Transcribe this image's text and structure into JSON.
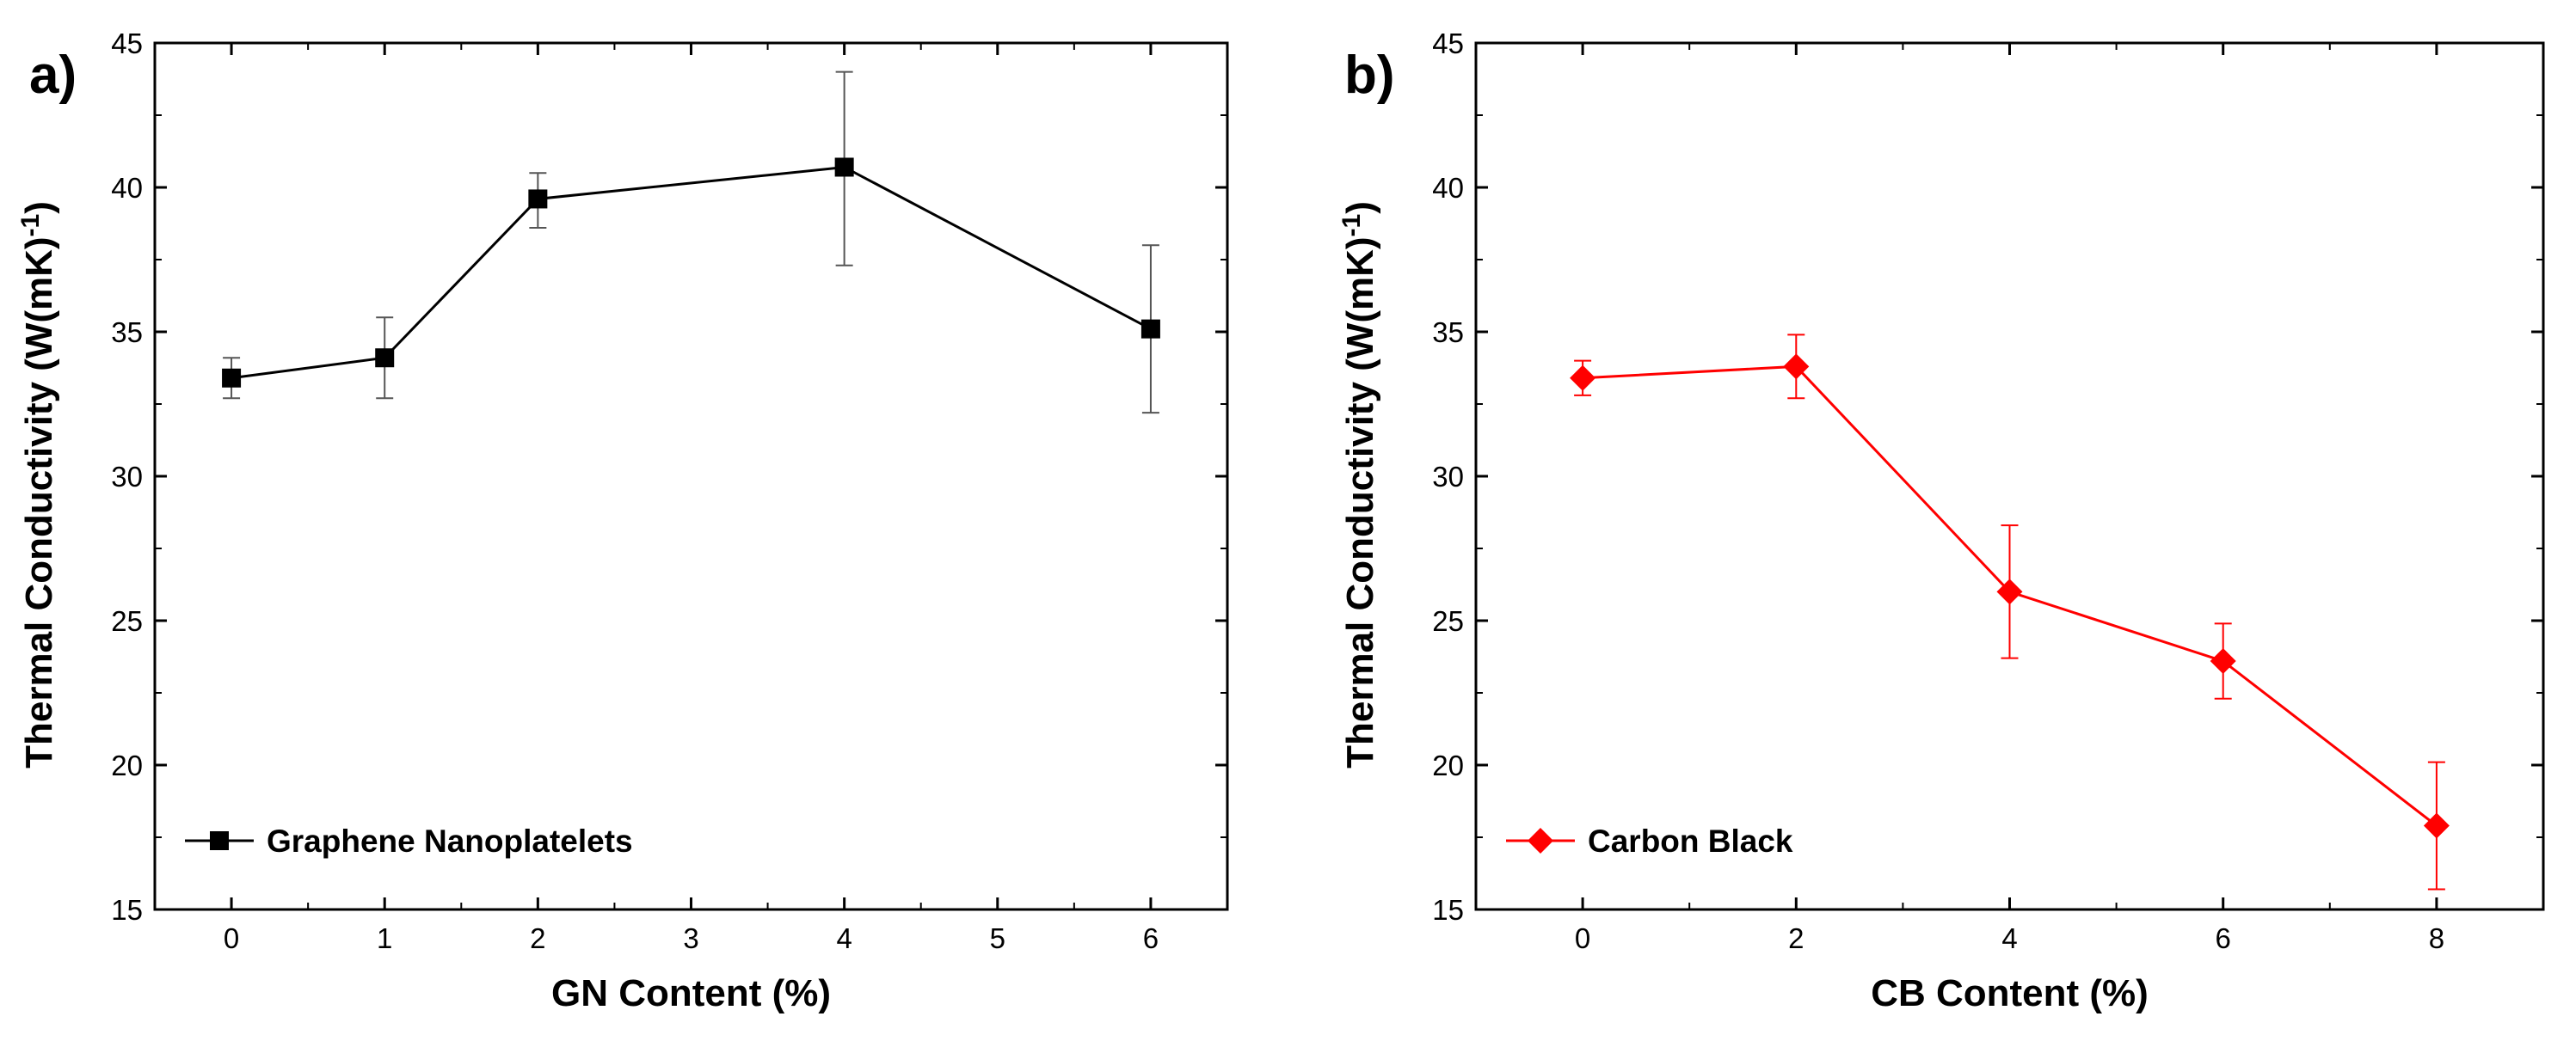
{
  "chart_data": [
    {
      "panel_label": "a)",
      "type": "line",
      "title": "",
      "xlabel": "GN Content (%)",
      "ylabel_main": "Thermal Conductivity (W(mK)",
      "ylabel_sup": "-1",
      "ylabel_close": ")",
      "xlim": [
        -0.5,
        6.5
      ],
      "ylim": [
        15,
        45
      ],
      "xticks": [
        0,
        1,
        2,
        3,
        4,
        5,
        6
      ],
      "xtick_labels": [
        "0",
        "1",
        "2",
        "3",
        "4",
        "5",
        "6"
      ],
      "yticks": [
        15,
        20,
        25,
        30,
        35,
        40,
        45
      ],
      "ytick_labels": [
        "15",
        "20",
        "25",
        "30",
        "35",
        "40",
        "45"
      ],
      "legend_position": "bottom-left",
      "series": [
        {
          "name": "Graphene Nanoplatelets",
          "color": "#000000",
          "marker": "square",
          "x": [
            0,
            1,
            2,
            4,
            6
          ],
          "y": [
            33.4,
            34.1,
            39.6,
            40.7,
            35.1
          ],
          "err_low": [
            32.7,
            32.7,
            38.6,
            37.3,
            32.2
          ],
          "err_high": [
            34.1,
            35.5,
            40.5,
            44.0,
            38.0
          ]
        }
      ]
    },
    {
      "panel_label": "b)",
      "type": "line",
      "title": "",
      "xlabel": "CB Content (%)",
      "ylabel_main": "Thermal Conductivity (W(mK)",
      "ylabel_sup": "-1",
      "ylabel_close": ")",
      "xlim": [
        -1,
        9
      ],
      "ylim": [
        15,
        45
      ],
      "xticks": [
        0,
        2,
        4,
        6,
        8
      ],
      "xtick_labels": [
        "0",
        "2",
        "4",
        "6",
        "8"
      ],
      "yticks": [
        15,
        20,
        25,
        30,
        35,
        40,
        45
      ],
      "ytick_labels": [
        "15",
        "20",
        "25",
        "30",
        "35",
        "40",
        "45"
      ],
      "legend_position": "bottom-left",
      "series": [
        {
          "name": "Carbon Black",
          "color": "#ff0000",
          "marker": "diamond",
          "x": [
            0,
            2,
            4,
            6,
            8
          ],
          "y": [
            33.4,
            33.8,
            26.0,
            23.6,
            17.9
          ],
          "err_low": [
            32.8,
            32.7,
            23.7,
            22.3,
            15.7
          ],
          "err_high": [
            34.0,
            34.9,
            28.3,
            24.9,
            20.1
          ]
        }
      ]
    }
  ]
}
